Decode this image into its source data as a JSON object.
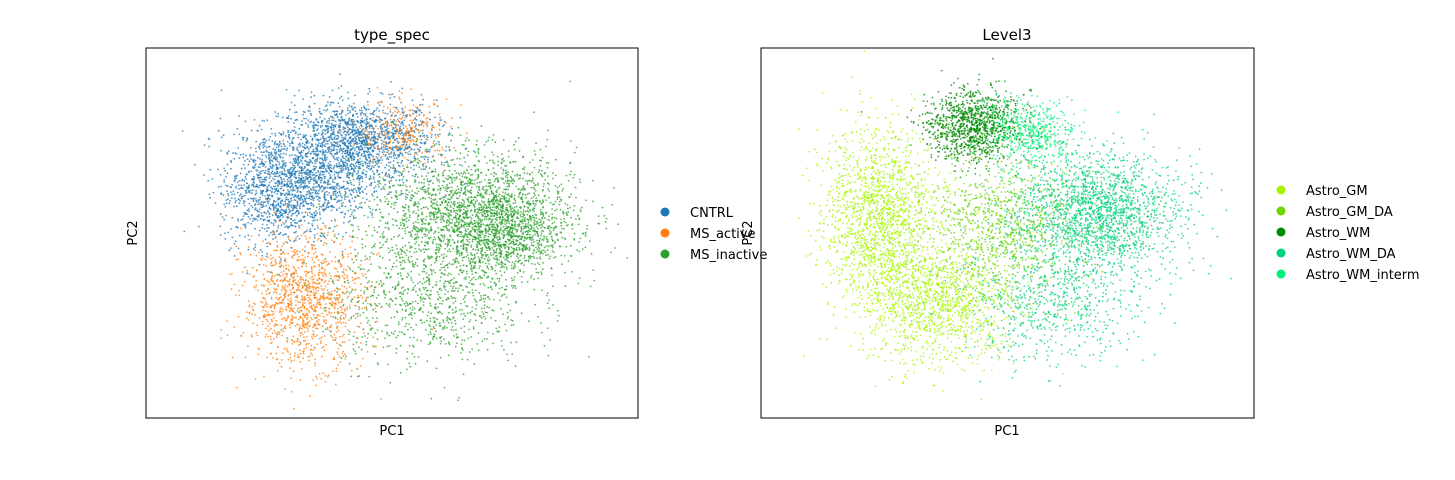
{
  "chart_data": [
    {
      "type": "scatter",
      "title": "type_spec",
      "xlabel": "PC1",
      "ylabel": "PC2",
      "grid": false,
      "axis_ticks": false,
      "legend_placement": "right, outside",
      "series": [
        {
          "name": "CNTRL",
          "color": "#1f77b4",
          "clusters": [
            {
              "cx": -0.15,
              "cy": 0.52,
              "sx": 0.17,
              "sy": 0.12,
              "n": 1500
            },
            {
              "cx": -0.5,
              "cy": 0.25,
              "sx": 0.12,
              "sy": 0.16,
              "n": 1100
            },
            {
              "cx": -0.3,
              "cy": 0.3,
              "sx": 0.14,
              "sy": 0.13,
              "n": 600
            }
          ]
        },
        {
          "name": "MS_active",
          "color": "#ff7f0e",
          "clusters": [
            {
              "cx": -0.38,
              "cy": -0.38,
              "sx": 0.13,
              "sy": 0.19,
              "n": 1200
            },
            {
              "cx": 0.05,
              "cy": 0.58,
              "sx": 0.1,
              "sy": 0.09,
              "n": 300
            }
          ]
        },
        {
          "name": "MS_inactive",
          "color": "#2ca02c",
          "clusters": [
            {
              "cx": 0.35,
              "cy": 0.1,
              "sx": 0.22,
              "sy": 0.18,
              "n": 2200
            },
            {
              "cx": 0.5,
              "cy": 0.0,
              "sx": 0.11,
              "sy": 0.12,
              "n": 600
            },
            {
              "cx": 0.15,
              "cy": -0.4,
              "sx": 0.22,
              "sy": 0.18,
              "n": 800
            }
          ]
        }
      ]
    },
    {
      "type": "scatter",
      "title": "Level3",
      "xlabel": "PC1",
      "ylabel": "PC2",
      "grid": false,
      "axis_ticks": false,
      "legend_placement": "right, outside",
      "series": [
        {
          "name": "Astro_GM",
          "color": "#a6f500",
          "clusters": [
            {
              "cx": -0.55,
              "cy": 0.1,
              "sx": 0.12,
              "sy": 0.25,
              "n": 1600
            },
            {
              "cx": -0.3,
              "cy": -0.4,
              "sx": 0.17,
              "sy": 0.18,
              "n": 1300
            }
          ]
        },
        {
          "name": "Astro_GM_DA",
          "color": "#6dd400",
          "clusters": [
            {
              "cx": -0.05,
              "cy": 0.05,
              "sx": 0.16,
              "sy": 0.2,
              "n": 900
            }
          ]
        },
        {
          "name": "Astro_WM",
          "color": "#008a00",
          "clusters": [
            {
              "cx": -0.15,
              "cy": 0.62,
              "sx": 0.1,
              "sy": 0.1,
              "n": 1100
            }
          ]
        },
        {
          "name": "Astro_WM_DA",
          "color": "#00d27a",
          "clusters": [
            {
              "cx": 0.38,
              "cy": 0.12,
              "sx": 0.18,
              "sy": 0.17,
              "n": 2000
            },
            {
              "cx": 0.2,
              "cy": -0.4,
              "sx": 0.2,
              "sy": 0.17,
              "n": 700
            }
          ]
        },
        {
          "name": "Astro_WM_interm",
          "color": "#00f07a",
          "clusters": [
            {
              "cx": 0.1,
              "cy": 0.58,
              "sx": 0.1,
              "sy": 0.09,
              "n": 500
            }
          ]
        }
      ]
    }
  ]
}
